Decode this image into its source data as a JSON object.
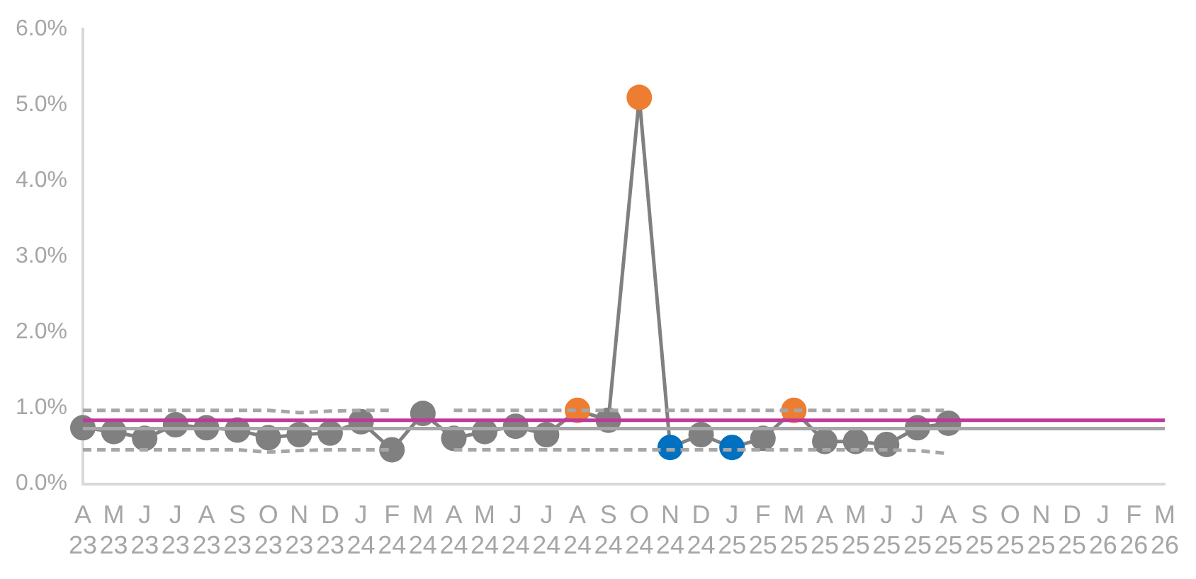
{
  "chart_data": {
    "type": "line",
    "categories": [
      "A\n23",
      "M\n23",
      "J\n23",
      "J\n23",
      "A\n23",
      "S\n23",
      "O\n23",
      "N\n23",
      "D\n23",
      "J\n24",
      "F\n24",
      "M\n24",
      "A\n24",
      "M\n24",
      "J\n24",
      "J\n24",
      "A\n24",
      "S\n24",
      "O\n24",
      "N\n24",
      "D\n24",
      "J\n25",
      "F\n25",
      "M\n25",
      "A\n25",
      "M\n25",
      "J\n25",
      "J\n25",
      "A\n25",
      "S\n25",
      "O\n25",
      "N\n25",
      "D\n25",
      "J\n26",
      "F\n26",
      "M\n26"
    ],
    "series": [
      {
        "color": "#a6a6a6",
        "marker": "none",
        "line_style": "solid",
        "values": [
          0.73,
          0.73,
          0.73,
          0.73,
          0.73,
          0.73,
          0.73,
          0.73,
          0.73,
          0.73,
          0.73,
          0.73,
          0.73,
          0.73,
          0.73,
          0.73,
          0.73,
          0.73,
          0.73,
          0.73,
          0.73,
          0.73,
          0.73,
          0.73,
          0.73,
          0.73,
          0.73,
          0.73,
          0.73,
          0.73,
          0.73,
          0.73,
          0.73,
          0.73,
          0.73,
          0.73
        ]
      },
      {
        "color": "#c0399a",
        "marker": "none",
        "line_style": "solid",
        "values": [
          0.84,
          0.84,
          0.84,
          0.84,
          0.84,
          0.84,
          0.84,
          0.84,
          0.84,
          0.84,
          0.84,
          0.84,
          0.84,
          0.84,
          0.84,
          0.84,
          0.84,
          0.84,
          0.84,
          0.84,
          0.84,
          0.84,
          0.84,
          0.84,
          0.84,
          0.84,
          0.84,
          0.84,
          0.84,
          0.84,
          0.84,
          0.84,
          0.84,
          0.84,
          0.84,
          0.84
        ]
      },
      {
        "color": "#a6a6a6",
        "marker": "none",
        "line_style": "dashed",
        "values": [
          0.97,
          0.97,
          0.97,
          0.97,
          0.97,
          0.97,
          0.97,
          0.94,
          0.96,
          0.97,
          0.97,
          null,
          0.97,
          0.97,
          0.97,
          0.97,
          0.97,
          0.97,
          0.97,
          0.97,
          0.97,
          0.97,
          0.97,
          0.97,
          0.97,
          0.97,
          0.97,
          0.97,
          0.97,
          null,
          null,
          null,
          null,
          null,
          null,
          null
        ]
      },
      {
        "color": "#a6a6a6",
        "marker": "none",
        "line_style": "dashed",
        "values": [
          0.45,
          0.45,
          0.45,
          0.45,
          0.45,
          0.45,
          0.42,
          0.44,
          0.45,
          0.45,
          0.45,
          null,
          0.45,
          0.45,
          0.45,
          0.45,
          0.45,
          0.45,
          0.45,
          0.45,
          0.45,
          0.45,
          0.45,
          0.45,
          0.45,
          0.45,
          0.45,
          0.44,
          0.4,
          null,
          null,
          null,
          null,
          null,
          null,
          null
        ]
      },
      {
        "color": "#808080",
        "marker": "circle",
        "line_style": "solid",
        "colors": [
          "#808080",
          "#808080",
          "#808080",
          "#808080",
          "#808080",
          "#808080",
          "#808080",
          "#808080",
          "#808080",
          "#808080",
          "#808080",
          "#808080",
          "#808080",
          "#808080",
          "#808080",
          "#808080",
          "#ed7d31",
          "#808080",
          "#ed7d31",
          "#0070c0",
          "#808080",
          "#0070c0",
          "#808080",
          "#ed7d31",
          "#808080",
          "#808080",
          "#808080",
          "#808080",
          "#808080",
          null,
          null,
          null,
          null,
          null,
          null,
          null
        ],
        "values": [
          0.74,
          0.69,
          0.6,
          0.78,
          0.74,
          0.71,
          0.61,
          0.65,
          0.67,
          0.82,
          0.45,
          0.93,
          0.6,
          0.69,
          0.76,
          0.65,
          0.97,
          0.84,
          5.1,
          0.48,
          0.65,
          0.48,
          0.6,
          0.97,
          0.56,
          0.56,
          0.52,
          0.74,
          0.8,
          null,
          null,
          null,
          null,
          null,
          null,
          null
        ]
      }
    ],
    "ylim": [
      0,
      6
    ],
    "yticks": [
      {
        "value": 0,
        "label": "0.0%"
      },
      {
        "value": 1,
        "label": "1.0%"
      },
      {
        "value": 2,
        "label": "2.0%"
      },
      {
        "value": 3,
        "label": "3.0%"
      },
      {
        "value": 4,
        "label": "4.0%"
      },
      {
        "value": 5,
        "label": "5.0%"
      },
      {
        "value": 6,
        "label": "6.0%"
      }
    ],
    "grid": false,
    "legend": false
  }
}
